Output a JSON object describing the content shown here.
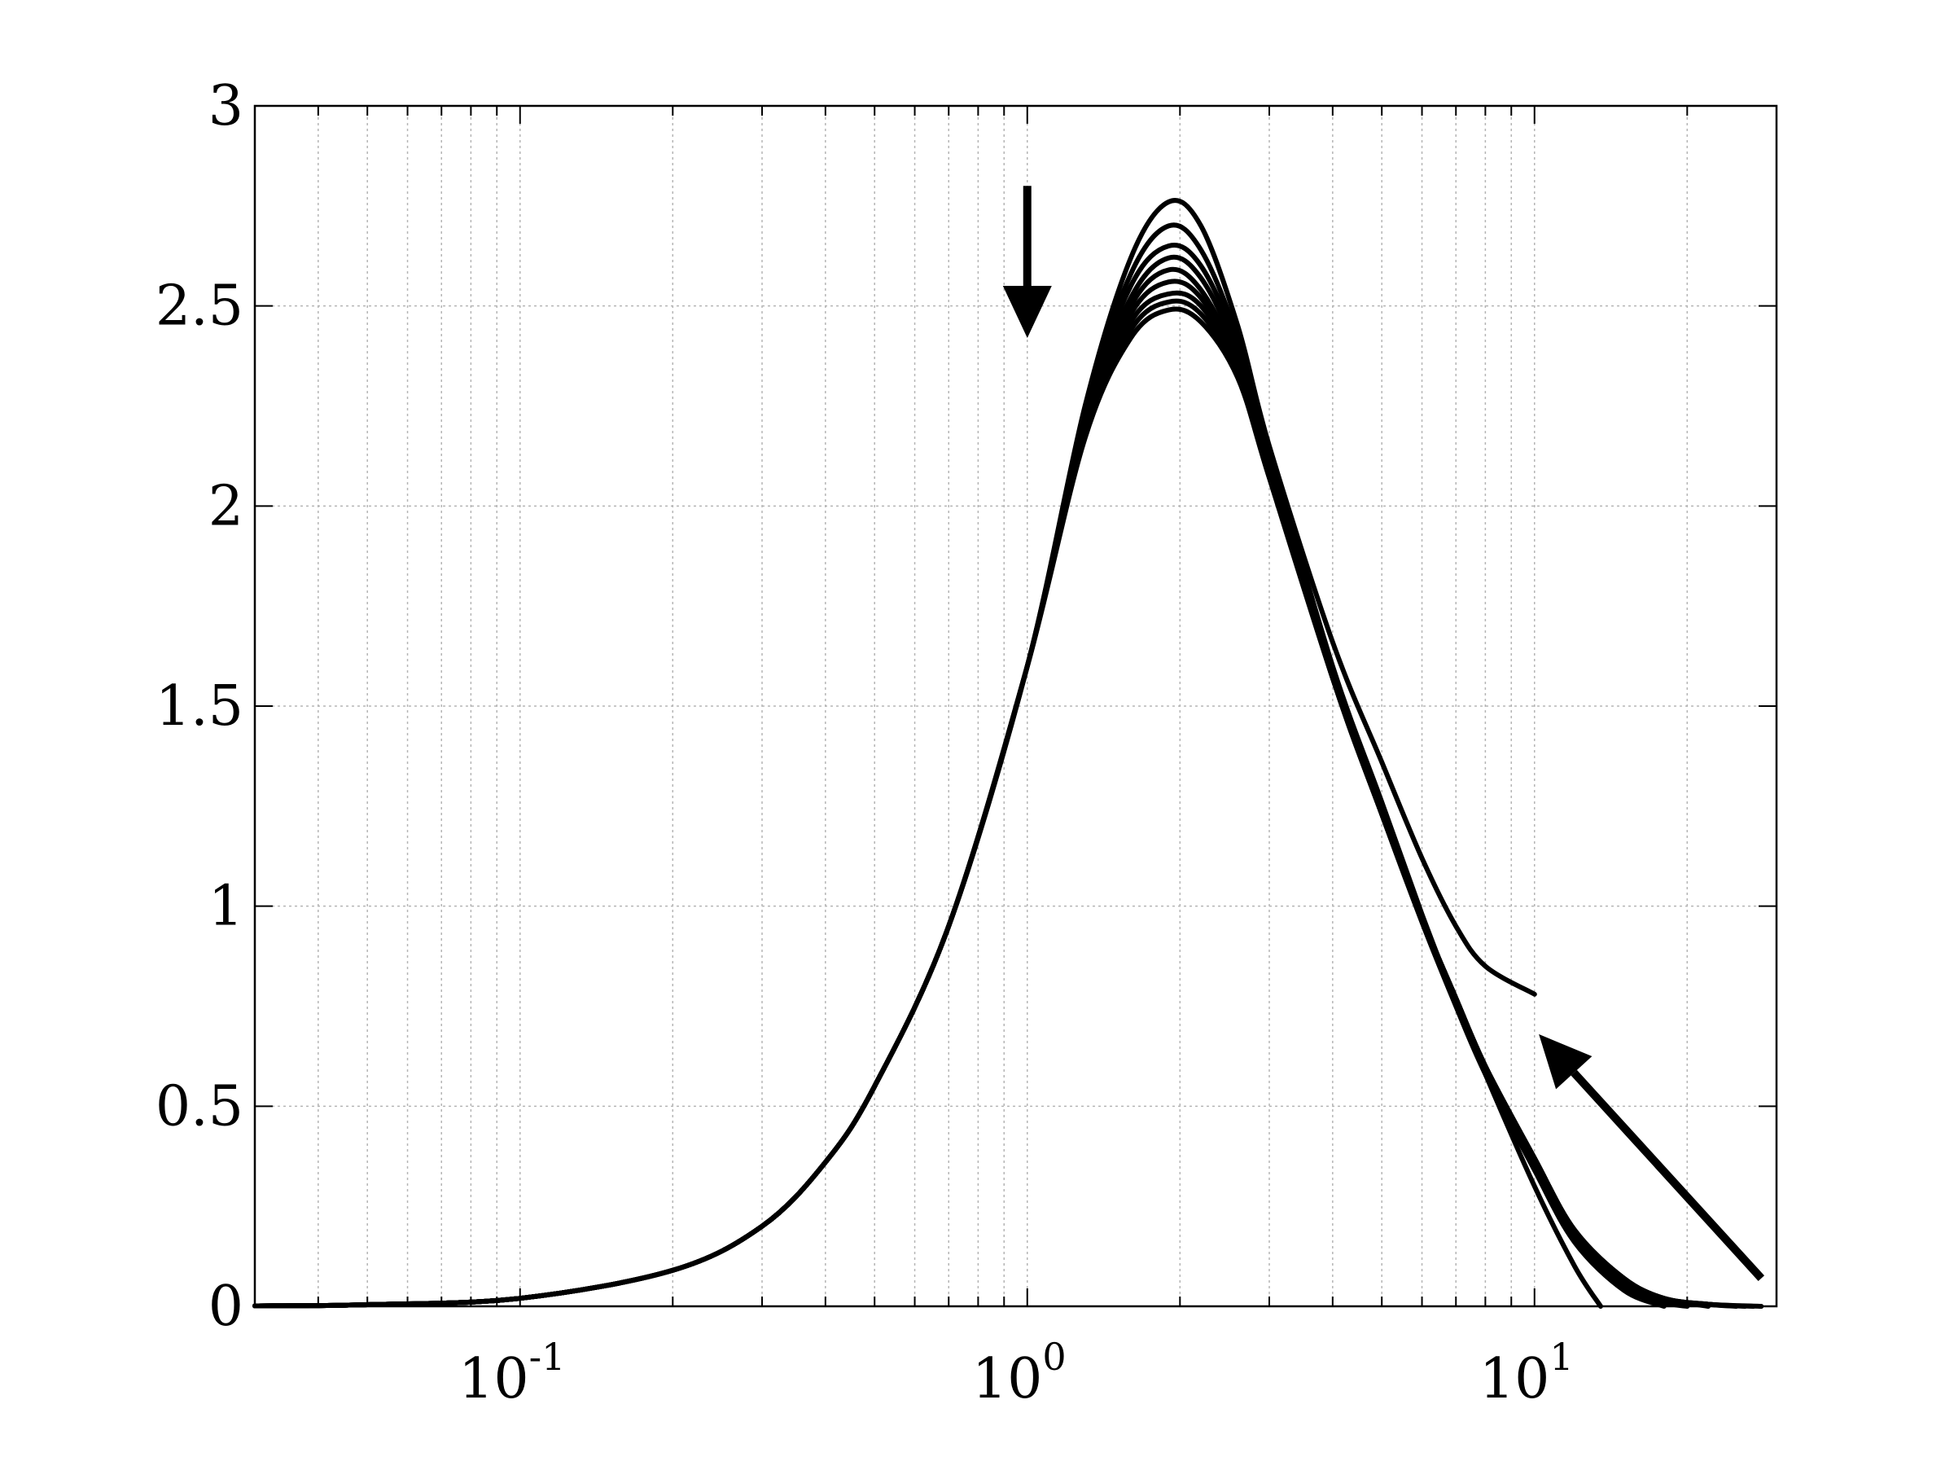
{
  "chart_data": {
    "type": "line",
    "title": "",
    "xlabel": "",
    "ylabel": "",
    "x_scale": "log",
    "xlim": [
      0.03,
      30
    ],
    "ylim": [
      0,
      3
    ],
    "grid": true,
    "x_ticks": [
      {
        "value": 0.1,
        "base": "10",
        "exp": "-1"
      },
      {
        "value": 1,
        "base": "10",
        "exp": "0"
      },
      {
        "value": 10,
        "base": "10",
        "exp": "1"
      }
    ],
    "y_ticks": [
      {
        "value": 0,
        "label": "0"
      },
      {
        "value": 0.5,
        "label": "0.5"
      },
      {
        "value": 1,
        "label": "1"
      },
      {
        "value": 1.5,
        "label": "1.5"
      },
      {
        "value": 2,
        "label": "2"
      },
      {
        "value": 2.5,
        "label": "2.5"
      },
      {
        "value": 3,
        "label": "3"
      }
    ],
    "series": [
      {
        "x": [
          0.03,
          0.05,
          0.1,
          0.2,
          0.3,
          0.4,
          0.5,
          0.7,
          1,
          1.3,
          1.6,
          1.9,
          2.2,
          2.6,
          3,
          4,
          5,
          6,
          7,
          8,
          10
        ],
        "y": [
          0.001,
          0.004,
          0.02,
          0.09,
          0.2,
          0.36,
          0.55,
          0.95,
          1.6,
          2.25,
          2.62,
          2.76,
          2.7,
          2.45,
          2.15,
          1.66,
          1.36,
          1.12,
          0.95,
          0.85,
          0.78
        ]
      },
      {
        "x": [
          0.03,
          0.05,
          0.1,
          0.2,
          0.3,
          0.4,
          0.5,
          0.7,
          1,
          1.3,
          1.6,
          1.9,
          2.2,
          2.6,
          3,
          4,
          5,
          6,
          7,
          8,
          10,
          12,
          13.5
        ],
        "y": [
          0.001,
          0.004,
          0.02,
          0.09,
          0.2,
          0.36,
          0.55,
          0.95,
          1.6,
          2.24,
          2.58,
          2.7,
          2.64,
          2.42,
          2.14,
          1.6,
          1.26,
          0.98,
          0.76,
          0.58,
          0.3,
          0.1,
          0
        ]
      },
      {
        "x": [
          0.03,
          0.05,
          0.1,
          0.2,
          0.3,
          0.4,
          0.5,
          0.7,
          1,
          1.3,
          1.6,
          1.9,
          2.2,
          2.6,
          3,
          4,
          5,
          6,
          7,
          8,
          10,
          12,
          15,
          18
        ],
        "y": [
          0.001,
          0.004,
          0.02,
          0.09,
          0.2,
          0.36,
          0.55,
          0.95,
          1.6,
          2.23,
          2.55,
          2.65,
          2.6,
          2.4,
          2.13,
          1.58,
          1.23,
          0.96,
          0.75,
          0.58,
          0.34,
          0.16,
          0.04,
          0
        ]
      },
      {
        "x": [
          0.03,
          0.05,
          0.1,
          0.2,
          0.3,
          0.4,
          0.5,
          0.7,
          1,
          1.3,
          1.6,
          1.9,
          2.2,
          2.6,
          3,
          4,
          5,
          6,
          7,
          8,
          10,
          12,
          15,
          18,
          20
        ],
        "y": [
          0.001,
          0.004,
          0.02,
          0.09,
          0.2,
          0.36,
          0.55,
          0.95,
          1.6,
          2.22,
          2.52,
          2.62,
          2.57,
          2.38,
          2.12,
          1.58,
          1.23,
          0.97,
          0.76,
          0.59,
          0.35,
          0.17,
          0.05,
          0.01,
          0
        ]
      },
      {
        "x": [
          0.03,
          0.05,
          0.1,
          0.2,
          0.3,
          0.4,
          0.5,
          0.7,
          1,
          1.3,
          1.6,
          1.9,
          2.2,
          2.6,
          3,
          4,
          5,
          6,
          7,
          8,
          10,
          12,
          15,
          18,
          22
        ],
        "y": [
          0.001,
          0.004,
          0.02,
          0.09,
          0.2,
          0.36,
          0.55,
          0.95,
          1.6,
          2.21,
          2.5,
          2.59,
          2.54,
          2.36,
          2.11,
          1.58,
          1.23,
          0.97,
          0.77,
          0.6,
          0.36,
          0.18,
          0.06,
          0.02,
          0
        ]
      },
      {
        "x": [
          0.03,
          0.05,
          0.1,
          0.2,
          0.3,
          0.4,
          0.5,
          0.7,
          1,
          1.3,
          1.6,
          1.9,
          2.2,
          2.6,
          3,
          4,
          5,
          6,
          7,
          8,
          10,
          12,
          15,
          18,
          22,
          25
        ],
        "y": [
          0.001,
          0.004,
          0.02,
          0.09,
          0.2,
          0.36,
          0.55,
          0.95,
          1.6,
          2.2,
          2.48,
          2.56,
          2.52,
          2.35,
          2.1,
          1.57,
          1.23,
          0.97,
          0.77,
          0.6,
          0.36,
          0.19,
          0.07,
          0.02,
          0.005,
          0
        ]
      },
      {
        "x": [
          0.03,
          0.05,
          0.1,
          0.2,
          0.3,
          0.4,
          0.5,
          0.7,
          1,
          1.3,
          1.6,
          1.9,
          2.2,
          2.6,
          3,
          4,
          5,
          6,
          7,
          8,
          10,
          12,
          15,
          18,
          22,
          26
        ],
        "y": [
          0.001,
          0.004,
          0.02,
          0.09,
          0.2,
          0.36,
          0.55,
          0.95,
          1.6,
          2.19,
          2.46,
          2.53,
          2.5,
          2.34,
          2.09,
          1.57,
          1.23,
          0.97,
          0.77,
          0.6,
          0.37,
          0.19,
          0.07,
          0.02,
          0.005,
          0
        ]
      },
      {
        "x": [
          0.03,
          0.05,
          0.1,
          0.2,
          0.3,
          0.4,
          0.5,
          0.7,
          1,
          1.3,
          1.6,
          1.9,
          2.2,
          2.6,
          3,
          4,
          5,
          6,
          7,
          8,
          10,
          12,
          15,
          18,
          22,
          27
        ],
        "y": [
          0.001,
          0.004,
          0.02,
          0.09,
          0.2,
          0.36,
          0.55,
          0.95,
          1.6,
          2.18,
          2.44,
          2.51,
          2.48,
          2.33,
          2.08,
          1.57,
          1.23,
          0.97,
          0.77,
          0.6,
          0.37,
          0.19,
          0.07,
          0.02,
          0.005,
          0
        ]
      },
      {
        "x": [
          0.03,
          0.05,
          0.1,
          0.2,
          0.3,
          0.4,
          0.5,
          0.7,
          1,
          1.3,
          1.6,
          1.9,
          2.2,
          2.6,
          3,
          4,
          5,
          6,
          7,
          8,
          10,
          12,
          15,
          18,
          22,
          28
        ],
        "y": [
          0.001,
          0.004,
          0.02,
          0.09,
          0.2,
          0.36,
          0.55,
          0.95,
          1.6,
          2.17,
          2.42,
          2.49,
          2.46,
          2.32,
          2.07,
          1.57,
          1.23,
          0.97,
          0.77,
          0.6,
          0.37,
          0.19,
          0.07,
          0.02,
          0.005,
          0
        ]
      }
    ],
    "annotations": [
      {
        "type": "arrow",
        "from": [
          1,
          2.8
        ],
        "to": [
          1,
          2.42
        ]
      },
      {
        "type": "arrow",
        "from": [
          28,
          0.07
        ],
        "to": [
          10.2,
          0.68
        ]
      }
    ]
  }
}
